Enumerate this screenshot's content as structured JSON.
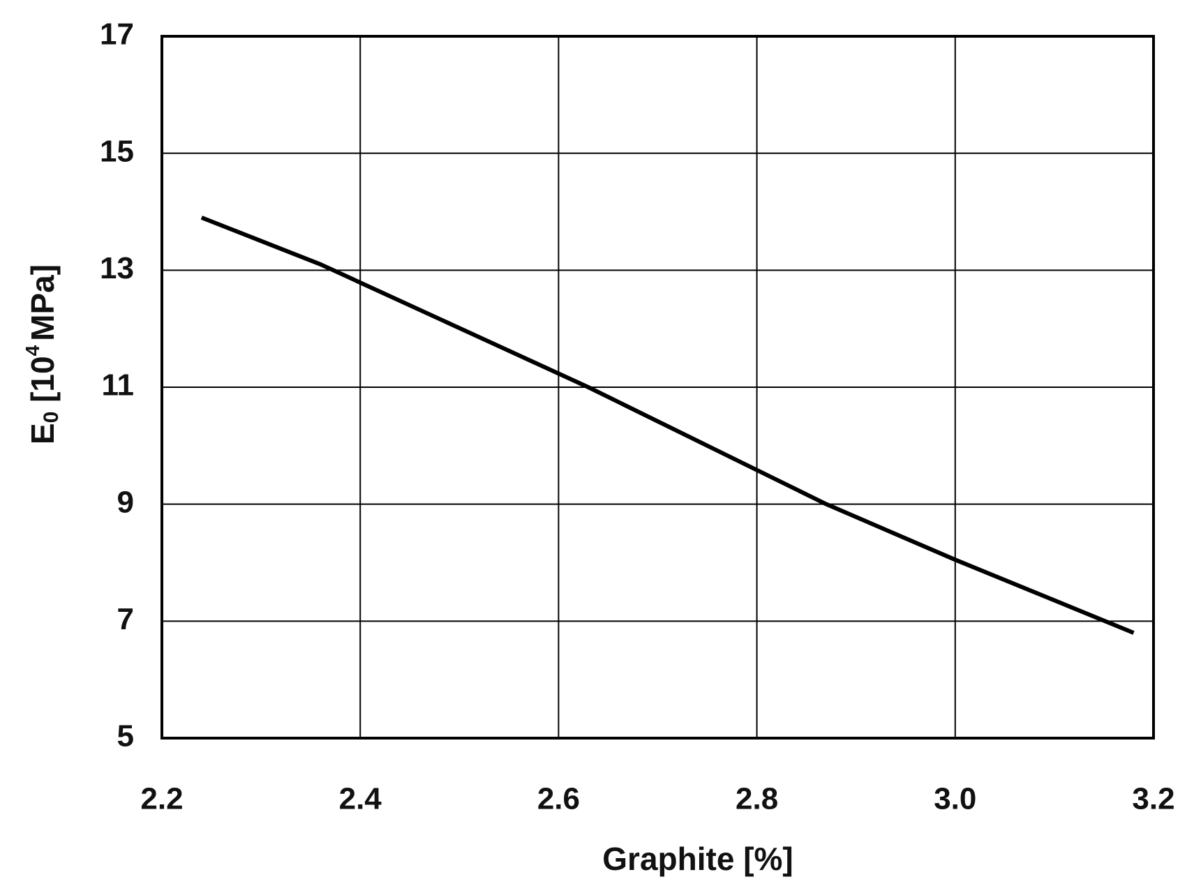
{
  "chart_data": {
    "type": "line",
    "xlabel": "Graphite [%]",
    "ylabel_parts": [
      "E",
      "0",
      " [10",
      "4",
      "MPa]"
    ],
    "x": [
      2.24,
      2.36,
      2.63,
      2.87,
      3.0,
      3.18
    ],
    "series": [
      {
        "color": "#000000",
        "values": [
          13.9,
          13.1,
          11.0,
          9.0,
          8.05,
          6.8
        ]
      }
    ],
    "xlim": [
      2.2,
      3.2
    ],
    "xticks": [
      {
        "value": 2.2,
        "label": "2.2"
      },
      {
        "value": 2.4,
        "label": "2.4"
      },
      {
        "value": 2.6,
        "label": "2.6"
      },
      {
        "value": 2.8,
        "label": "2.8"
      },
      {
        "value": 3.0,
        "label": "3.0"
      },
      {
        "value": 3.2,
        "label": "3.2"
      }
    ],
    "ylim": [
      5,
      17
    ],
    "yticks": [
      5,
      7,
      9,
      11,
      13,
      15,
      17
    ],
    "grid": true
  }
}
